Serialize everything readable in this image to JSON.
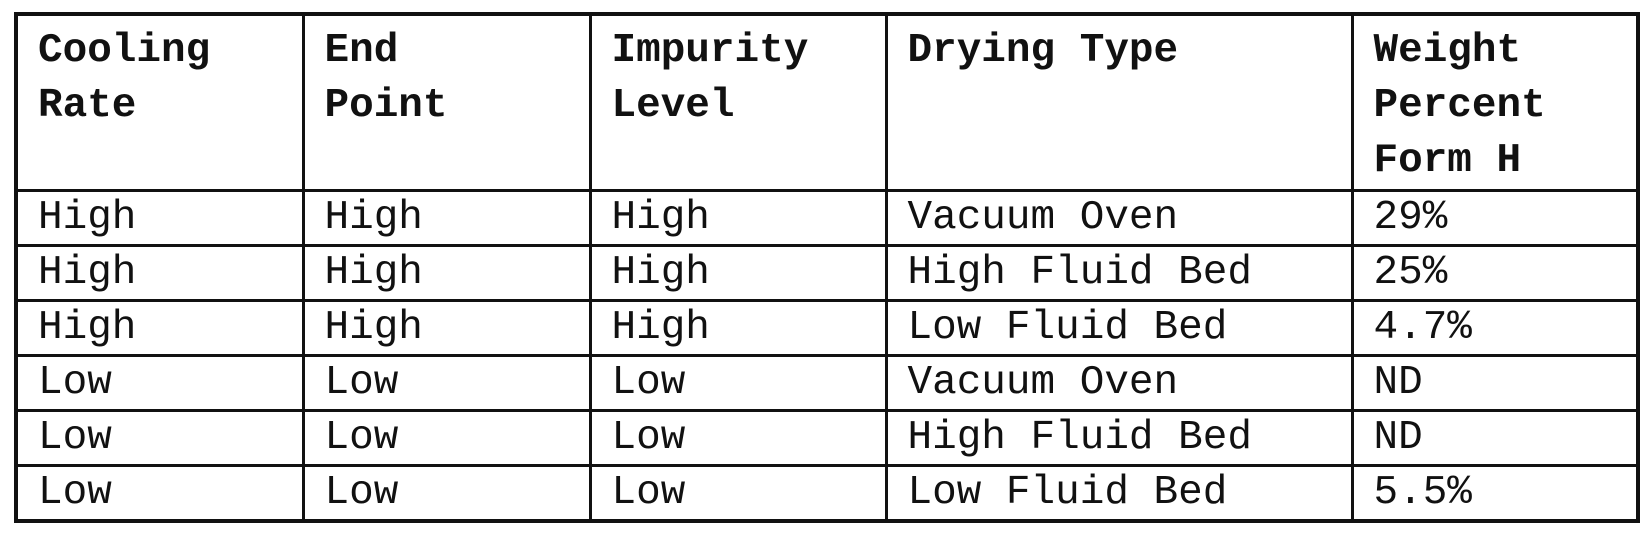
{
  "table": {
    "headers": [
      [
        "Cooling",
        "Rate"
      ],
      [
        "End",
        "Point"
      ],
      [
        "Impurity",
        "Level"
      ],
      [
        "Drying Type"
      ],
      [
        "Weight",
        "Percent",
        "Form H"
      ]
    ],
    "rows": [
      [
        "High",
        "High",
        "High",
        "Vacuum Oven",
        "29%"
      ],
      [
        "High",
        "High",
        "High",
        "High Fluid Bed",
        "25%"
      ],
      [
        "High",
        "High",
        "High",
        "Low Fluid Bed",
        "4.7%"
      ],
      [
        "Low",
        "Low",
        "Low",
        "Vacuum Oven",
        "ND"
      ],
      [
        "Low",
        "Low",
        "Low",
        "High Fluid Bed",
        "ND"
      ],
      [
        "Low",
        "Low",
        "Low",
        "Low Fluid Bed",
        "5.5%"
      ]
    ]
  }
}
